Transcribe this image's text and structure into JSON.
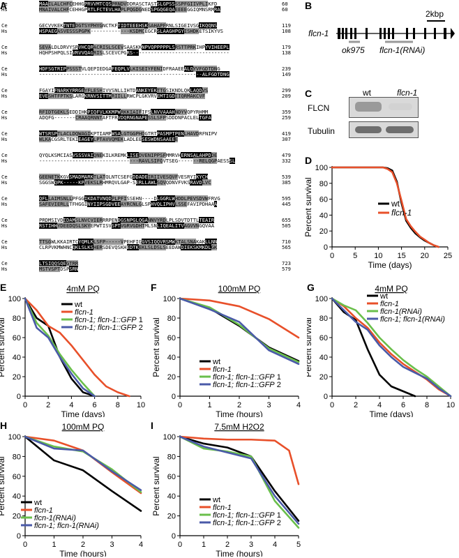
{
  "panels": [
    "A",
    "B",
    "C",
    "D",
    "E",
    "F",
    "G",
    "H",
    "I"
  ],
  "alignment": {
    "rows": [
      {
        "sp": "Ce",
        "seq": "MAAILALCHFCEHHGPRVVMTCQSPRNDVDDRASCTASTSLGPSSSSPFGIIVPLIKFD",
        "num": "60"
      },
      {
        "sp": "Hs",
        "seq": "MNAIVALCHFCEHHGPRTLFCTEVLHAPLPQGDGNEDSPGQGEQAEEEEGGIQMNSRMRA",
        "num": "60"
      },
      {
        "sp": "Ce",
        "seq": "GECVVKEKTNTEDGTSYPHYGNCTKFTIDTEEEHSKSAHAPFRNLSIGEIVSGIKQQNS",
        "num": "119"
      },
      {
        "sp": "Hs",
        "seq": "HSPAEGASVESSSPGPK-------------KSDMCEGCRSLAAGHPGYISHDKETSIKYVS",
        "num": "108"
      },
      {
        "sp": "Ce",
        "seq": "SEVALDLDRVYSRVHCQRACRISLSCEVSAASKKNPVQPPPPPLSRSTTPRKIHPYVIHEEPL",
        "num": "179"
      },
      {
        "sp": "Hs",
        "seq": "HQHPSHPQLSIVRVVQAGRISLSCEVCPGRS--------------------------------",
        "num": "138"
      },
      {
        "sp": "Ce",
        "seq": "HDFSGTRIPPSSSTVLQEPIEDGAFEQPLVLKISEIYFENIDFRAAEEALQYVFGDTDNG",
        "num": "239"
      },
      {
        "sp": "Hs",
        "seq": "------------------------------------------------------ALFGDTDNG",
        "num": "149"
      },
      {
        "sp": "Ce",
        "seq": "FGAYIFNARKYRRGEYFLESHIVVSNLLIHTDANKEYEKTTGSIKNDLQKLAQDVS",
        "num": "299"
      },
      {
        "sp": "Hs",
        "seq": "EVESHTFPTKSLARGKRNVSITTMRIILLRWCPLGKVRVEMTIGDIIQRMAKCVF",
        "num": "209"
      },
      {
        "sp": "Ce",
        "seq": "RFIDTGEKLSEDDIHKPIQFVLKKMPWRKKIAIFIFSLNVVAAAHNDYVQPYRHMM",
        "num": "359"
      },
      {
        "sp": "Hs",
        "seq": "ADQFG-------CRAAQRNNTAFTFRVDQRNGNAPESSLSFPSDDDNPACLELTGFA",
        "num": "259"
      },
      {
        "sp": "Ce",
        "seq": "WTSRSPTLACLDQWAGIKPTIAMPWSALGTGGPHQGTRTPASMPTPENLHAVDRFNIPV",
        "num": "419"
      },
      {
        "sp": "Hs",
        "seq": "WLKACGSRLTEKIEAGEYLPTAVVQMEKLADLEESESWDNSAAEEE",
        "num": "307"
      },
      {
        "sp": "Ce",
        "seq": "QYQLKSMCIASVSSSVAIQNEKILKREMKLISEDVENIPPSFMMRVHERNSALAHPDDE",
        "num": "479"
      },
      {
        "sp": "Hs",
        "seq": "---------------------------------RAVLSIFQVTSEG-------RELQGPAESSSL",
        "num": "332"
      },
      {
        "sp": "Ce",
        "seq": "GEENETKKGVSMADMARKTLATQLNTCSEFGDDADEIRIIVESQVFVESRYIKYCH",
        "num": "539"
      },
      {
        "sp": "Hs",
        "seq": "SGGSWQPK-----KPVEKSLRHMRQVLGAP-SERLLAWLSQVQDNVFVKSRAVDLVC",
        "num": "385"
      },
      {
        "sp": "Ce",
        "seq": "QFLLAIMSNLLPFGGIKDATVNQDPLPFISSEHN----DLGGRLWHDDLPEVSDVWFRVG",
        "num": "595"
      },
      {
        "sp": "Hs",
        "seq": "SAFEVIERLLTFHGGINYIIPSGDVEEAYRCNLGLSPHVQLIPHVLSSEFAVIPDHAAA",
        "num": "445"
      },
      {
        "sp": "Ce",
        "seq": "PRDMSIVDIDAMSLNVCVIERRRPENDGSNPGLQGANNVYRDLPLSDVTDTTLTEAIR",
        "num": "655"
      },
      {
        "sp": "Hs",
        "seq": "RSTIHHYDEEDQSLSKYEPWTISVSPTVGRVGDHTMLSNLIQEALITVAGVVNGQVAA",
        "num": "505"
      },
      {
        "sp": "Ce",
        "seq": "TTSGWLKKAIRTCYQMLKLSFP-----VPEHFIGGVSIQQVRSMWKTALSNAKAKLLNN",
        "num": "710"
      },
      {
        "sp": "Hs",
        "seq": "CLRPVKMWHNCQKLSLKSHERSDEVQSKHEDTKEKLSLDSLSEEDAWDIEKSKMKDLGK",
        "num": "565"
      },
      {
        "sp": "Ce",
        "seq": "LTSIQQSQEGTRR",
        "num": "723"
      },
      {
        "sp": "Hs",
        "seq": "MSTVSPTDSPSRN",
        "num": "579"
      }
    ]
  },
  "gene": {
    "name": "flcn-1",
    "scale": "2kbp",
    "allele": "ok975",
    "rnai": "flcn-1(RNAi)"
  },
  "blot": {
    "lanes": [
      "wt",
      "flcn-1"
    ],
    "rows": [
      "FLCN",
      "Tubulin"
    ]
  },
  "colors": {
    "wt": "#000000",
    "flcn-1": "#e8502a",
    "gfp1": "#6abf4b",
    "gfp2": "#4a5aa8",
    "rnai": "#6abf4b",
    "rescue_rnai": "#4a5aa8"
  },
  "chart_data": [
    {
      "id": "D",
      "type": "line",
      "ylabel": "Percent survival",
      "xlabel": "Time (days)",
      "xlim": [
        0,
        25
      ],
      "ylim": [
        0,
        100
      ],
      "xticks": [
        0,
        5,
        10,
        15,
        20,
        25
      ],
      "yticks": [
        0,
        20,
        40,
        60,
        80,
        100
      ],
      "series": [
        {
          "name": "wt",
          "key": "wt",
          "x": [
            0,
            11,
            12,
            13,
            14,
            15,
            16,
            17,
            18,
            19,
            20,
            21,
            22,
            23
          ],
          "y": [
            100,
            100,
            99,
            96,
            82,
            55,
            33,
            24,
            17,
            12,
            8,
            5,
            2,
            0
          ]
        },
        {
          "name": "flcn-1",
          "key": "flcn-1",
          "x": [
            0,
            11,
            12,
            13,
            14,
            15,
            16,
            17,
            18,
            19,
            20,
            21,
            22,
            23
          ],
          "y": [
            100,
            100,
            98,
            94,
            80,
            58,
            35,
            26,
            19,
            13,
            9,
            5,
            2,
            0
          ]
        }
      ]
    },
    {
      "id": "E",
      "type": "line",
      "title": "4mM PQ",
      "ylabel": "Percent survival",
      "xlabel": "Time (days)",
      "xlim": [
        0,
        10
      ],
      "ylim": [
        0,
        100
      ],
      "xticks": [
        0,
        2,
        4,
        6,
        8,
        10
      ],
      "yticks": [
        0,
        20,
        40,
        60,
        80,
        100
      ],
      "series": [
        {
          "name": "wt",
          "key": "wt",
          "x": [
            0,
            1,
            2,
            3,
            4,
            5,
            6
          ],
          "y": [
            100,
            80,
            72,
            40,
            18,
            4,
            0
          ]
        },
        {
          "name": "flcn-1",
          "key": "flcn-1",
          "x": [
            0,
            1,
            2,
            3,
            4,
            5,
            6,
            7,
            8,
            9
          ],
          "y": [
            100,
            88,
            72,
            65,
            52,
            37,
            22,
            10,
            4,
            0
          ]
        },
        {
          "name": "flcn-1; flcn-1::GFP 1",
          "key": "gfp1",
          "x": [
            0,
            1,
            2,
            3,
            4,
            5,
            6
          ],
          "y": [
            100,
            75,
            62,
            43,
            27,
            13,
            0
          ]
        },
        {
          "name": "flcn-1; flcn-1::GFP 2",
          "key": "gfp2",
          "x": [
            0,
            1,
            2,
            3,
            4,
            5,
            6
          ],
          "y": [
            100,
            70,
            60,
            40,
            23,
            8,
            0
          ]
        }
      ]
    },
    {
      "id": "F",
      "type": "line",
      "title": "100mM PQ",
      "ylabel": "Percent survival",
      "xlabel": "Time (hours)",
      "xlim": [
        0,
        4
      ],
      "ylim": [
        0,
        100
      ],
      "xticks": [
        0,
        1,
        2,
        3,
        4
      ],
      "yticks": [
        0,
        20,
        40,
        60,
        80,
        100
      ],
      "series": [
        {
          "name": "wt",
          "key": "wt",
          "x": [
            0,
            1,
            2,
            3,
            4
          ],
          "y": [
            100,
            90,
            72,
            50,
            36
          ]
        },
        {
          "name": "flcn-1",
          "key": "flcn-1",
          "x": [
            0,
            1,
            2,
            3,
            4
          ],
          "y": [
            100,
            98,
            92,
            79,
            60
          ]
        },
        {
          "name": "flcn-1; flcn-1::GFP 1",
          "key": "gfp1",
          "x": [
            0,
            1,
            2,
            3,
            4
          ],
          "y": [
            100,
            91,
            73,
            49,
            35
          ]
        },
        {
          "name": "flcn-1; flcn-1::GFP 2",
          "key": "gfp2",
          "x": [
            0,
            1,
            2,
            3,
            4
          ],
          "y": [
            100,
            89,
            76,
            47,
            33
          ]
        }
      ]
    },
    {
      "id": "G",
      "type": "line",
      "title": "4mM PQ",
      "ylabel": "Percent survival",
      "xlabel": "Time (days)",
      "xlim": [
        0,
        10
      ],
      "ylim": [
        0,
        100
      ],
      "xticks": [
        0,
        2,
        4,
        6,
        8,
        10
      ],
      "yticks": [
        0,
        20,
        40,
        60,
        80,
        100
      ],
      "series": [
        {
          "name": "wt",
          "key": "wt",
          "x": [
            0,
            1,
            2,
            3,
            4,
            5,
            6,
            7
          ],
          "y": [
            100,
            86,
            78,
            48,
            22,
            10,
            5,
            0
          ]
        },
        {
          "name": "flcn-1",
          "key": "flcn-1",
          "x": [
            0,
            1,
            2,
            3,
            4,
            5,
            6,
            7,
            8,
            9,
            10
          ],
          "y": [
            100,
            92,
            80,
            70,
            55,
            43,
            33,
            25,
            17,
            7,
            0
          ]
        },
        {
          "name": "flcn-1(RNAi)",
          "key": "rnai",
          "x": [
            0,
            1,
            2,
            3,
            4,
            5,
            6,
            7,
            8,
            9,
            10
          ],
          "y": [
            100,
            93,
            88,
            75,
            60,
            48,
            37,
            28,
            20,
            10,
            0
          ]
        },
        {
          "name": "flcn-1; flcn-1(RNAi)",
          "key": "rescue_rnai",
          "x": [
            0,
            1,
            2,
            3,
            4,
            5,
            6,
            7,
            8,
            9,
            10
          ],
          "y": [
            100,
            88,
            76,
            68,
            52,
            40,
            30,
            24,
            18,
            8,
            0
          ]
        }
      ]
    },
    {
      "id": "H",
      "type": "line",
      "title": "100mM PQ",
      "ylabel": "Percent survival",
      "xlabel": "Time (hours)",
      "xlim": [
        0,
        4
      ],
      "ylim": [
        0,
        100
      ],
      "xticks": [
        0,
        1,
        2,
        3,
        4
      ],
      "yticks": [
        0,
        20,
        40,
        60,
        80,
        100
      ],
      "series": [
        {
          "name": "wt",
          "key": "wt",
          "x": [
            0,
            1,
            2,
            3,
            4
          ],
          "y": [
            100,
            76,
            66,
            45,
            25
          ]
        },
        {
          "name": "flcn-1",
          "key": "flcn-1",
          "x": [
            0,
            1,
            2,
            3,
            4
          ],
          "y": [
            100,
            96,
            86,
            64,
            43
          ]
        },
        {
          "name": "flcn-1(RNAi)",
          "key": "rnai",
          "x": [
            0,
            1,
            2,
            3,
            4
          ],
          "y": [
            100,
            90,
            85,
            67,
            44
          ]
        },
        {
          "name": "flcn-1; flcn-1(RNAi)",
          "key": "rescue_rnai",
          "x": [
            0,
            1,
            2,
            3,
            4
          ],
          "y": [
            100,
            88,
            86,
            65,
            46
          ]
        }
      ]
    },
    {
      "id": "I",
      "type": "line",
      "title": "7.5mM H2O2",
      "ylabel": "Percent survival",
      "xlabel": "Time (hours)",
      "xlim": [
        0,
        5
      ],
      "ylim": [
        0,
        100
      ],
      "xticks": [
        0,
        1,
        2,
        3,
        4,
        5
      ],
      "yticks": [
        0,
        20,
        40,
        60,
        80,
        100
      ],
      "series": [
        {
          "name": "wt",
          "key": "wt",
          "x": [
            0,
            1,
            2,
            3,
            4,
            5
          ],
          "y": [
            100,
            93,
            89,
            80,
            45,
            15
          ]
        },
        {
          "name": "flcn-1",
          "key": "flcn-1",
          "x": [
            0,
            1,
            2,
            3,
            4,
            4.6,
            5
          ],
          "y": [
            100,
            98,
            97,
            97,
            96,
            86,
            52
          ]
        },
        {
          "name": "flcn-1; flcn-1::GFP 1",
          "key": "gfp1",
          "x": [
            0,
            1,
            2,
            3,
            4,
            5
          ],
          "y": [
            100,
            88,
            85,
            80,
            35,
            8
          ]
        },
        {
          "name": "flcn-1; flcn-1::GFP 2",
          "key": "gfp2",
          "x": [
            0,
            1,
            2,
            3,
            4,
            5
          ],
          "y": [
            100,
            90,
            84,
            78,
            40,
            12
          ]
        }
      ]
    }
  ]
}
